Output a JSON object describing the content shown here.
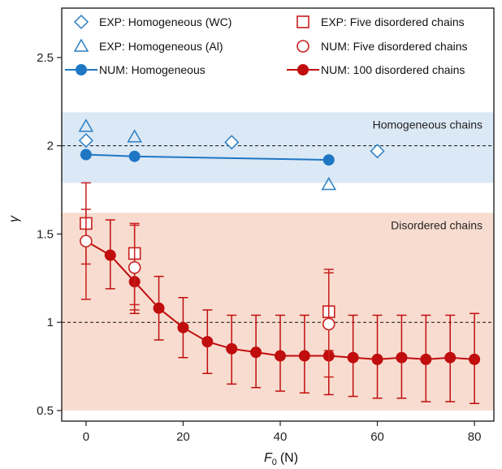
{
  "chart_data": {
    "type": "scatter",
    "xlabel_main": "F",
    "xlabel_sub": "0",
    "xlabel_unit": "(N)",
    "ylabel": "γ",
    "xlim": [
      -5,
      84
    ],
    "ylim": [
      0.44,
      2.78
    ],
    "x_ticks": [
      0,
      20,
      40,
      60,
      80
    ],
    "y_ticks": [
      0.5,
      1,
      1.5,
      2,
      2.5
    ],
    "y_tick_labels": [
      "0.5",
      "1",
      "1.5",
      "2",
      "2.5"
    ],
    "bands": [
      {
        "label": "Homogeneous chains",
        "y_range": [
          1.79,
          2.19
        ],
        "color": "#dbe8f5"
      },
      {
        "label": "Disordered chains",
        "y_range": [
          0.5,
          1.62
        ],
        "color": "#f8dcd0"
      }
    ],
    "reference_lines": [
      2,
      1
    ],
    "series": [
      {
        "name": "EXP: Homogeneous (WC)",
        "marker": "diamond",
        "color": "#2a7fc4",
        "x": [
          0,
          30,
          60
        ],
        "y": [
          2.03,
          2.02,
          1.97
        ]
      },
      {
        "name": "EXP: Homogeneous (Al)",
        "marker": "triangle",
        "color": "#2a7fc4",
        "x": [
          0,
          10,
          50
        ],
        "y": [
          2.11,
          2.05,
          1.78
        ]
      },
      {
        "name": "NUM: Homogeneous",
        "marker": "filled-circle-line",
        "color": "#1f77c4",
        "x": [
          0,
          10,
          50
        ],
        "y": [
          1.95,
          1.94,
          1.92
        ]
      },
      {
        "name": "EXP: Five disordered chains",
        "marker": "square",
        "color": "#c8201e",
        "x": [
          0,
          10,
          50
        ],
        "y": [
          1.56,
          1.39,
          1.06
        ],
        "err_low": [
          1.33,
          1.1,
          0.84
        ],
        "err_high": [
          1.79,
          1.55,
          1.3
        ]
      },
      {
        "name": "NUM: Five disordered chains",
        "marker": "circle",
        "color": "#c8201e",
        "x": [
          0,
          10,
          50
        ],
        "y": [
          1.46,
          1.31,
          0.99
        ],
        "err_low": [
          1.13,
          1.07,
          0.69
        ],
        "err_high": [
          1.64,
          1.56,
          1.28
        ]
      },
      {
        "name": "NUM: 100 disordered chains",
        "marker": "filled-circle-line",
        "color": "#c00d0d",
        "x": [
          5,
          10,
          15,
          20,
          25,
          30,
          35,
          40,
          45,
          50,
          55,
          60,
          65,
          70,
          75,
          80
        ],
        "y": [
          1.38,
          1.23,
          1.08,
          0.97,
          0.89,
          0.85,
          0.83,
          0.81,
          0.81,
          0.81,
          0.8,
          0.79,
          0.8,
          0.79,
          0.8,
          0.79
        ],
        "err_low": [
          1.19,
          1.05,
          0.9,
          0.8,
          0.71,
          0.65,
          0.63,
          0.61,
          0.6,
          0.59,
          0.58,
          0.57,
          0.57,
          0.55,
          0.55,
          0.54
        ],
        "err_high": [
          1.58,
          1.42,
          1.26,
          1.14,
          1.07,
          1.04,
          1.04,
          1.04,
          1.04,
          1.04,
          1.04,
          1.04,
          1.04,
          1.04,
          1.04,
          1.05
        ]
      }
    ],
    "legend_position": "top"
  }
}
